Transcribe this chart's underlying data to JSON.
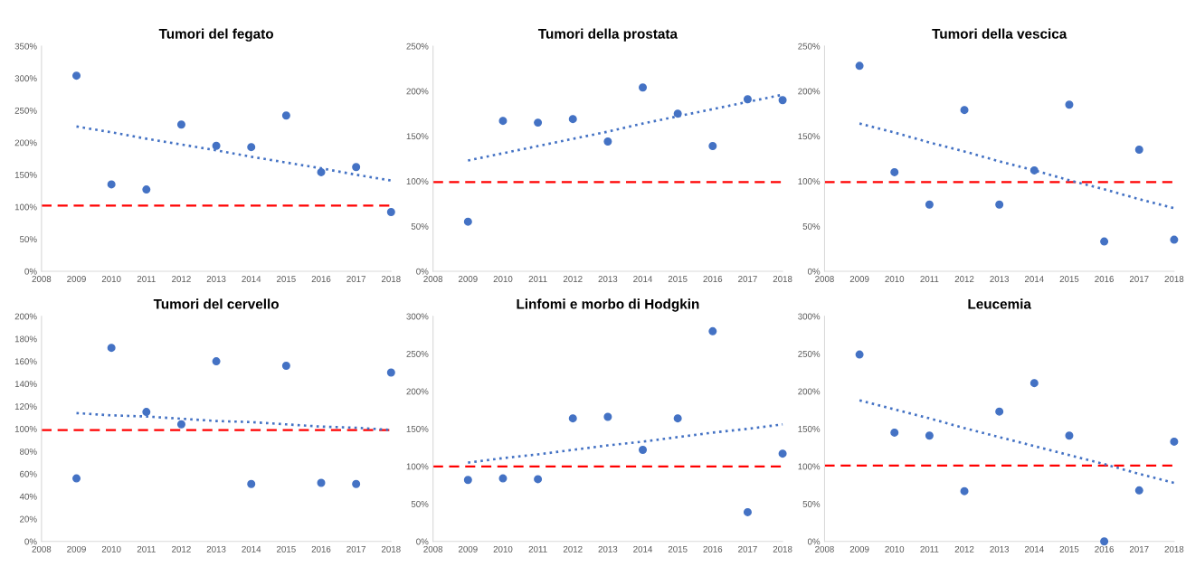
{
  "chart_data": [
    {
      "type": "scatter",
      "title": "Tumori del fegato",
      "x": [
        2009,
        2010,
        2011,
        2012,
        2013,
        2014,
        2015,
        2016,
        2017,
        2018
      ],
      "series": [
        {
          "type": "scatter",
          "color": "#4472c4",
          "marker": "circle",
          "values": [
            304,
            135,
            127,
            228,
            195,
            193,
            242,
            154,
            162,
            92
          ]
        },
        {
          "type": "line",
          "color": "#4472c4",
          "line_style": "dotted",
          "values": [
            225,
            216,
            206,
            197,
            188,
            178,
            169,
            160,
            150,
            141
          ]
        }
      ],
      "ref_lines": [
        {
          "axis": "y",
          "value": 102,
          "color": "#ff0000",
          "line_style": "dashed"
        }
      ],
      "xlim": [
        2008,
        2018
      ],
      "xticks": [
        2008,
        2009,
        2010,
        2011,
        2012,
        2013,
        2014,
        2015,
        2016,
        2017,
        2018
      ],
      "ylim": [
        0,
        350
      ],
      "yticks": [
        {
          "value": 0,
          "label": "0%"
        },
        {
          "value": 50,
          "label": "50%"
        },
        {
          "value": 100,
          "label": "100%"
        },
        {
          "value": 150,
          "label": "150%"
        },
        {
          "value": 200,
          "label": "200%"
        },
        {
          "value": 250,
          "label": "250%"
        },
        {
          "value": 300,
          "label": "300%"
        },
        {
          "value": 350,
          "label": "350%"
        }
      ]
    },
    {
      "type": "scatter",
      "title": "Tumori della prostata",
      "x": [
        2009,
        2010,
        2011,
        2012,
        2013,
        2014,
        2015,
        2016,
        2017,
        2018
      ],
      "series": [
        {
          "type": "scatter",
          "color": "#4472c4",
          "marker": "circle",
          "values": [
            55,
            167,
            165,
            169,
            144,
            204,
            175,
            139,
            191,
            190
          ]
        },
        {
          "type": "line",
          "color": "#4472c4",
          "line_style": "dotted",
          "values": [
            123,
            131,
            139,
            147,
            155,
            164,
            172,
            180,
            188,
            196
          ]
        }
      ],
      "ref_lines": [
        {
          "axis": "y",
          "value": 99,
          "color": "#ff0000",
          "line_style": "dashed"
        }
      ],
      "xlim": [
        2008,
        2018
      ],
      "xticks": [
        2008,
        2009,
        2010,
        2011,
        2012,
        2013,
        2014,
        2015,
        2016,
        2017,
        2018
      ],
      "ylim": [
        0,
        250
      ],
      "yticks": [
        {
          "value": 0,
          "label": "0%"
        },
        {
          "value": 50,
          "label": "50%"
        },
        {
          "value": 100,
          "label": "100%"
        },
        {
          "value": 150,
          "label": "150%"
        },
        {
          "value": 200,
          "label": "200%"
        },
        {
          "value": 250,
          "label": "250%"
        }
      ]
    },
    {
      "type": "scatter",
      "title": "Tumori della vescica",
      "x": [
        2009,
        2010,
        2011,
        2012,
        2013,
        2014,
        2015,
        2016,
        2017,
        2018
      ],
      "series": [
        {
          "type": "scatter",
          "color": "#4472c4",
          "marker": "circle",
          "values": [
            228,
            110,
            74,
            179,
            74,
            112,
            185,
            33,
            135,
            35
          ]
        },
        {
          "type": "line",
          "color": "#4472c4",
          "line_style": "dotted",
          "values": [
            164,
            154,
            143,
            133,
            122,
            112,
            101,
            91,
            80,
            70
          ]
        }
      ],
      "ref_lines": [
        {
          "axis": "y",
          "value": 99,
          "color": "#ff0000",
          "line_style": "dashed"
        }
      ],
      "xlim": [
        2008,
        2018
      ],
      "xticks": [
        2008,
        2009,
        2010,
        2011,
        2012,
        2013,
        2014,
        2015,
        2016,
        2017,
        2018
      ],
      "ylim": [
        0,
        250
      ],
      "yticks": [
        {
          "value": 0,
          "label": "0%"
        },
        {
          "value": 50,
          "label": "50%"
        },
        {
          "value": 100,
          "label": "100%"
        },
        {
          "value": 150,
          "label": "150%"
        },
        {
          "value": 200,
          "label": "200%"
        },
        {
          "value": 250,
          "label": "250%"
        }
      ]
    },
    {
      "type": "scatter",
      "title": "Tumori del cervello",
      "x": [
        2009,
        2010,
        2011,
        2012,
        2013,
        2014,
        2015,
        2016,
        2017,
        2018
      ],
      "series": [
        {
          "type": "scatter",
          "color": "#4472c4",
          "marker": "circle",
          "values": [
            56,
            172,
            115,
            104,
            160,
            51,
            156,
            52,
            51,
            150
          ]
        },
        {
          "type": "line",
          "color": "#4472c4",
          "line_style": "dotted",
          "values": [
            114,
            112,
            111,
            109,
            107,
            106,
            104,
            102,
            101,
            99
          ]
        }
      ],
      "ref_lines": [
        {
          "axis": "y",
          "value": 99,
          "color": "#ff0000",
          "line_style": "dashed"
        }
      ],
      "xlim": [
        2008,
        2018
      ],
      "xticks": [
        2008,
        2009,
        2010,
        2011,
        2012,
        2013,
        2014,
        2015,
        2016,
        2017,
        2018
      ],
      "ylim": [
        0,
        200
      ],
      "yticks": [
        {
          "value": 0,
          "label": "0%"
        },
        {
          "value": 20,
          "label": "20%"
        },
        {
          "value": 40,
          "label": "40%"
        },
        {
          "value": 60,
          "label": "60%"
        },
        {
          "value": 80,
          "label": "80%"
        },
        {
          "value": 100,
          "label": "100%"
        },
        {
          "value": 120,
          "label": "120%"
        },
        {
          "value": 140,
          "label": "140%"
        },
        {
          "value": 160,
          "label": "160%"
        },
        {
          "value": 180,
          "label": "180%"
        },
        {
          "value": 200,
          "label": "200%"
        }
      ]
    },
    {
      "type": "scatter",
      "title": "Linfomi e morbo di Hodgkin",
      "x": [
        2009,
        2010,
        2011,
        2012,
        2013,
        2014,
        2015,
        2016,
        2017,
        2018
      ],
      "series": [
        {
          "type": "scatter",
          "color": "#4472c4",
          "marker": "circle",
          "values": [
            82,
            84,
            83,
            164,
            166,
            122,
            164,
            280,
            39,
            117
          ]
        },
        {
          "type": "line",
          "color": "#4472c4",
          "line_style": "dotted",
          "values": [
            105,
            111,
            116,
            122,
            128,
            133,
            139,
            145,
            150,
            156
          ]
        }
      ],
      "ref_lines": [
        {
          "axis": "y",
          "value": 100,
          "color": "#ff0000",
          "line_style": "dashed"
        }
      ],
      "xlim": [
        2008,
        2018
      ],
      "xticks": [
        2008,
        2009,
        2010,
        2011,
        2012,
        2013,
        2014,
        2015,
        2016,
        2017,
        2018
      ],
      "ylim": [
        0,
        300
      ],
      "yticks": [
        {
          "value": 0,
          "label": "0%"
        },
        {
          "value": 50,
          "label": "50%"
        },
        {
          "value": 100,
          "label": "100%"
        },
        {
          "value": 150,
          "label": "150%"
        },
        {
          "value": 200,
          "label": "200%"
        },
        {
          "value": 250,
          "label": "250%"
        },
        {
          "value": 300,
          "label": "300%"
        }
      ]
    },
    {
      "type": "scatter",
      "title": "Leucemia",
      "x": [
        2009,
        2010,
        2011,
        2012,
        2013,
        2014,
        2015,
        2016,
        2017,
        2018
      ],
      "series": [
        {
          "type": "scatter",
          "color": "#4472c4",
          "marker": "circle",
          "values": [
            249,
            145,
            141,
            67,
            173,
            211,
            141,
            0,
            68,
            133
          ]
        },
        {
          "type": "line",
          "color": "#4472c4",
          "line_style": "dotted",
          "values": [
            188,
            176,
            164,
            151,
            139,
            127,
            115,
            103,
            90,
            78
          ]
        }
      ],
      "ref_lines": [
        {
          "axis": "y",
          "value": 101,
          "color": "#ff0000",
          "line_style": "dashed"
        }
      ],
      "xlim": [
        2008,
        2018
      ],
      "xticks": [
        2008,
        2009,
        2010,
        2011,
        2012,
        2013,
        2014,
        2015,
        2016,
        2017,
        2018
      ],
      "ylim": [
        0,
        300
      ],
      "yticks": [
        {
          "value": 0,
          "label": "0%"
        },
        {
          "value": 50,
          "label": "50%"
        },
        {
          "value": 100,
          "label": "100%"
        },
        {
          "value": 150,
          "label": "150%"
        },
        {
          "value": 200,
          "label": "200%"
        },
        {
          "value": 250,
          "label": "250%"
        },
        {
          "value": 300,
          "label": "300%"
        }
      ]
    }
  ]
}
